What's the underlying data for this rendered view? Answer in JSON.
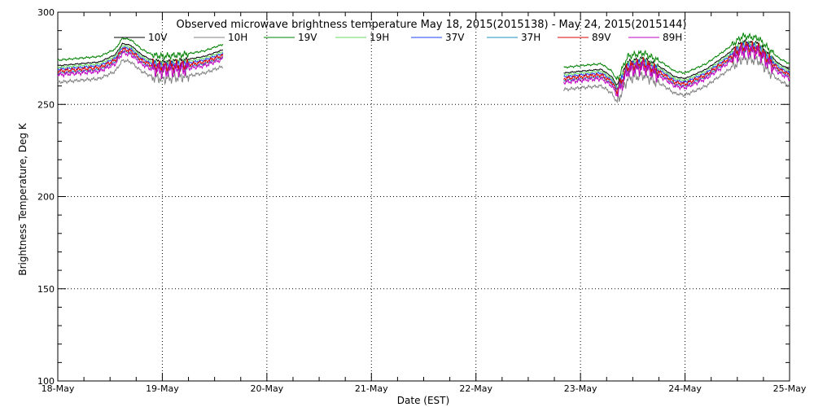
{
  "chart_data": {
    "type": "line",
    "title": "Observed microwave brightness temperature May 18, 2015(2015138) - May 24, 2015(2015144)",
    "xlabel": "Date (EST)",
    "ylabel": "Brightness Temperature, Deg K",
    "ylim": [
      100,
      300
    ],
    "yticks": [
      "100",
      "150",
      "200",
      "250",
      "300"
    ],
    "xlim": [
      0,
      7
    ],
    "xticks": [
      "18-May",
      "19-May",
      "20-May",
      "21-May",
      "22-May",
      "23-May",
      "24-May",
      "25-May"
    ],
    "grid": true,
    "legend_placement": "top",
    "data_gap": [
      1.58,
      4.84
    ],
    "x_units": "days since 18-May 00:00",
    "series": [
      {
        "name": "10V",
        "color": "#000000",
        "offset": 1,
        "amp": 1.2
      },
      {
        "name": "10H",
        "color": "#808080",
        "offset": -8,
        "amp": 3.5
      },
      {
        "name": "19V",
        "color": "#008000",
        "offset": 4,
        "amp": 2.0
      },
      {
        "name": "19H",
        "color": "#66dd66",
        "offset": 0,
        "amp": 2.0
      },
      {
        "name": "37V",
        "color": "#1f3fff",
        "offset": -1,
        "amp": 2.2
      },
      {
        "name": "37H",
        "color": "#1f8fbf",
        "offset": -3,
        "amp": 2.2
      },
      {
        "name": "89V",
        "color": "#dd0000",
        "offset": -2,
        "amp": 4.0
      },
      {
        "name": "89H",
        "color": "#c000c0",
        "offset": -4,
        "amp": 4.5
      }
    ],
    "base_profile": [
      [
        0.0,
        270
      ],
      [
        0.2,
        271
      ],
      [
        0.4,
        272
      ],
      [
        0.55,
        276
      ],
      [
        0.62,
        282
      ],
      [
        0.7,
        281
      ],
      [
        0.8,
        276
      ],
      [
        0.9,
        273
      ],
      [
        1.0,
        272
      ],
      [
        1.2,
        273
      ],
      [
        1.4,
        275
      ],
      [
        1.6,
        279
      ],
      [
        1.7,
        278
      ],
      [
        1.8,
        275
      ],
      [
        2.0,
        273
      ],
      [
        2.2,
        274
      ],
      [
        2.4,
        277
      ],
      [
        2.6,
        276
      ],
      [
        2.8,
        272
      ],
      [
        3.0,
        268
      ],
      [
        3.15,
        269
      ],
      [
        3.3,
        274
      ],
      [
        3.45,
        280
      ],
      [
        3.55,
        281
      ],
      [
        4.84,
        266
      ],
      [
        5.0,
        267
      ],
      [
        5.2,
        268
      ],
      [
        5.3,
        264
      ],
      [
        5.35,
        259
      ],
      [
        5.45,
        272
      ],
      [
        5.6,
        274
      ],
      [
        5.7,
        271
      ],
      [
        5.8,
        268
      ],
      [
        5.9,
        264
      ],
      [
        6.0,
        263
      ],
      [
        6.2,
        268
      ],
      [
        6.4,
        276
      ],
      [
        6.55,
        283
      ],
      [
        6.7,
        282
      ],
      [
        6.8,
        276
      ],
      [
        6.9,
        271
      ],
      [
        7.0,
        268
      ]
    ]
  }
}
